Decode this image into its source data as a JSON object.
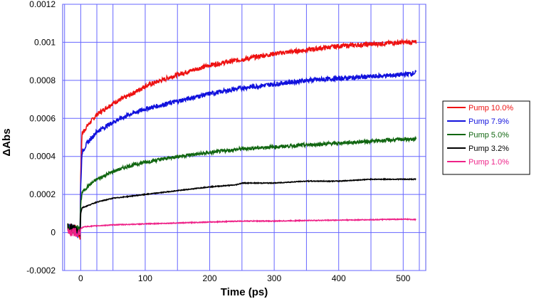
{
  "chart_data": {
    "type": "line",
    "title": "",
    "xlabel": "Time (ps)",
    "ylabel": "ΔAbs",
    "xlim": [
      -28,
      535
    ],
    "ylim": [
      -0.0002,
      0.0012
    ],
    "xticks": [
      0,
      100,
      200,
      300,
      400,
      500
    ],
    "yticks": [
      -0.0002,
      0,
      0.0002,
      0.0004,
      0.0006,
      0.0008,
      0.001,
      0.0012
    ],
    "ytick_labels": [
      "-0.0002",
      "0",
      "0.0002",
      "0.0004",
      "0.0006",
      "0.0008",
      "0.001",
      "0.0012"
    ],
    "x_grid_lines": [
      -25,
      0,
      25,
      50,
      100,
      150,
      200,
      250,
      300,
      350,
      400,
      450,
      500,
      525
    ],
    "grid": true,
    "grid_color": "#6666ff",
    "legend_position": "right",
    "series": [
      {
        "name": "Pump 10.0%",
        "color": "#ee1111",
        "points": [
          [
            -20,
            3e-05
          ],
          [
            -10,
            2e-05
          ],
          [
            -5,
            0.0
          ],
          [
            -1,
            -2e-05
          ],
          [
            0,
            0.0003
          ],
          [
            2,
            0.00052
          ],
          [
            10,
            0.00056
          ],
          [
            25,
            0.00062
          ],
          [
            50,
            0.00068
          ],
          [
            75,
            0.00072
          ],
          [
            100,
            0.00077
          ],
          [
            150,
            0.00083
          ],
          [
            200,
            0.00088
          ],
          [
            250,
            0.00091
          ],
          [
            300,
            0.00094
          ],
          [
            350,
            0.00096
          ],
          [
            400,
            0.00098
          ],
          [
            450,
            0.00099
          ],
          [
            500,
            0.001
          ],
          [
            520,
            0.001
          ]
        ]
      },
      {
        "name": "Pump 7.9%",
        "color": "#1111dd",
        "points": [
          [
            -20,
            3e-05
          ],
          [
            -10,
            2e-05
          ],
          [
            -5,
            0.0
          ],
          [
            -1,
            1e-05
          ],
          [
            0,
            0.00025
          ],
          [
            2,
            0.00042
          ],
          [
            10,
            0.00047
          ],
          [
            25,
            0.00053
          ],
          [
            50,
            0.00058
          ],
          [
            75,
            0.00062
          ],
          [
            100,
            0.00065
          ],
          [
            150,
            0.00069
          ],
          [
            200,
            0.00073
          ],
          [
            250,
            0.00076
          ],
          [
            300,
            0.00078
          ],
          [
            350,
            0.0008
          ],
          [
            400,
            0.00081
          ],
          [
            450,
            0.00082
          ],
          [
            500,
            0.00083
          ],
          [
            520,
            0.00084
          ]
        ]
      },
      {
        "name": "Pump 5.0%",
        "color": "#116611",
        "points": [
          [
            -20,
            2e-05
          ],
          [
            -10,
            1e-05
          ],
          [
            -5,
            2e-05
          ],
          [
            -1,
            0.0
          ],
          [
            0,
            0.00015
          ],
          [
            2,
            0.00021
          ],
          [
            10,
            0.00024
          ],
          [
            25,
            0.00028
          ],
          [
            50,
            0.00032
          ],
          [
            75,
            0.00035
          ],
          [
            100,
            0.00037
          ],
          [
            150,
            0.0004
          ],
          [
            200,
            0.00042
          ],
          [
            250,
            0.00044
          ],
          [
            300,
            0.00045
          ],
          [
            350,
            0.00046
          ],
          [
            400,
            0.00047
          ],
          [
            450,
            0.00048
          ],
          [
            500,
            0.00049
          ],
          [
            520,
            0.00049
          ]
        ]
      },
      {
        "name": "Pump 3.2%",
        "color": "#000000",
        "points": [
          [
            -20,
            3e-05
          ],
          [
            -10,
            2e-05
          ],
          [
            -5,
            1e-05
          ],
          [
            -1,
            0.0
          ],
          [
            0,
            0.0001
          ],
          [
            2,
            0.00013
          ],
          [
            10,
            0.00014
          ],
          [
            25,
            0.00016
          ],
          [
            50,
            0.00018
          ],
          [
            75,
            0.00019
          ],
          [
            100,
            0.0002
          ],
          [
            150,
            0.00022
          ],
          [
            200,
            0.00024
          ],
          [
            240,
            0.00025
          ],
          [
            250,
            0.00026
          ],
          [
            300,
            0.00026
          ],
          [
            350,
            0.00027
          ],
          [
            400,
            0.00027
          ],
          [
            450,
            0.00028
          ],
          [
            500,
            0.00028
          ],
          [
            520,
            0.00028
          ]
        ]
      },
      {
        "name": "Pump 1.0%",
        "color": "#ee2288",
        "points": [
          [
            -20,
            1e-05
          ],
          [
            -10,
            0.0
          ],
          [
            -1,
            0.0
          ],
          [
            0,
            2e-05
          ],
          [
            5,
            3e-05
          ],
          [
            25,
            3.5e-05
          ],
          [
            50,
            4e-05
          ],
          [
            100,
            4.5e-05
          ],
          [
            150,
            5e-05
          ],
          [
            200,
            5.5e-05
          ],
          [
            250,
            6e-05
          ],
          [
            300,
            6e-05
          ],
          [
            350,
            6.3e-05
          ],
          [
            400,
            6.5e-05
          ],
          [
            450,
            6.7e-05
          ],
          [
            500,
            7e-05
          ],
          [
            520,
            6.8e-05
          ]
        ]
      }
    ]
  }
}
